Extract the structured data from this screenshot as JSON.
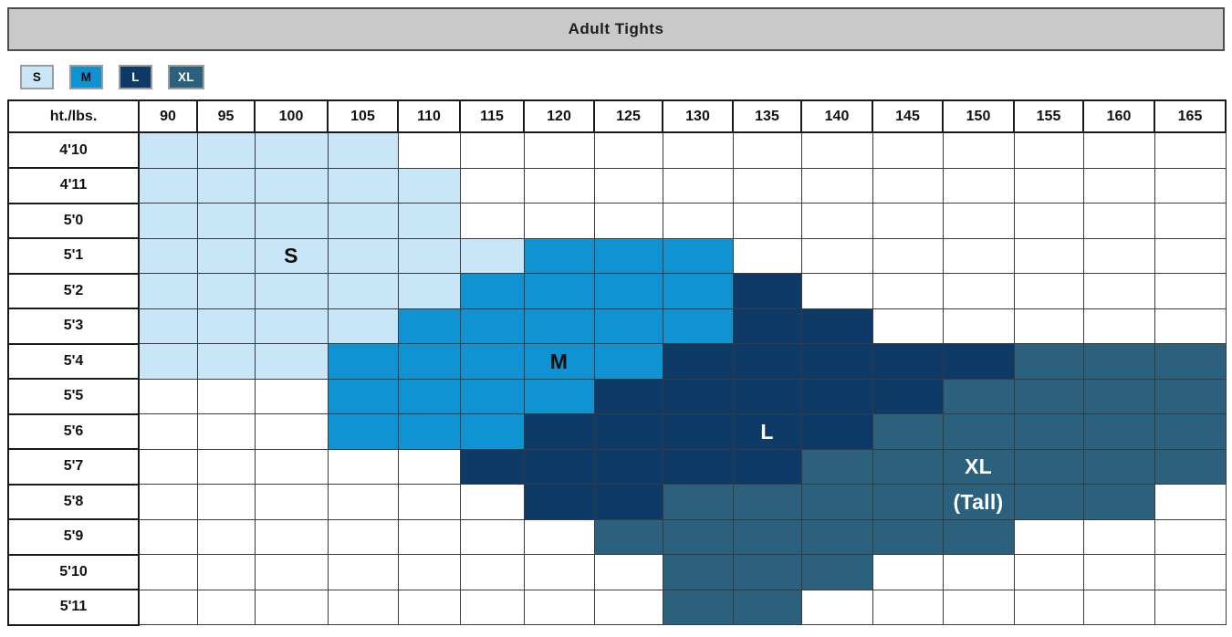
{
  "title_bar": {
    "title": "Adult Tights"
  },
  "legend": {
    "items": [
      {
        "size": "S"
      },
      {
        "size": "M"
      },
      {
        "size": "L"
      },
      {
        "size": "XL"
      }
    ]
  },
  "size_styles": {
    "S": {
      "fill": "#c9e6f8",
      "text": "#0d0d0d"
    },
    "M": {
      "fill": "#0f93d2",
      "text": "#0d0d0d"
    },
    "L": {
      "fill": "#0d3a66",
      "text": "#ffffff"
    },
    "XL": {
      "fill": "#2b617c",
      "text": "#ffffff"
    }
  },
  "chart_data": {
    "type": "heatmap",
    "title": "Adult Tights",
    "corner_label": "ht./lbs.",
    "xlabel": "lbs.",
    "ylabel": "ht.",
    "x_categories": [
      "90",
      "95",
      "100",
      "105",
      "110",
      "115",
      "120",
      "125",
      "130",
      "135",
      "140",
      "145",
      "150",
      "155",
      "160",
      "165"
    ],
    "y_categories": [
      "4'10",
      "4'11",
      "5'0",
      "5'1",
      "5'2",
      "5'3",
      "5'4",
      "5'5",
      "5'6",
      "5'7",
      "5'8",
      "5'9",
      "5'10",
      "5'11"
    ],
    "legend_entries": [
      "S",
      "M",
      "L",
      "XL"
    ],
    "values": [
      [
        "S",
        "S",
        "S",
        "S",
        "",
        "",
        "",
        "",
        "",
        "",
        "",
        "",
        "",
        "",
        "",
        ""
      ],
      [
        "S",
        "S",
        "S",
        "S",
        "S",
        "",
        "",
        "",
        "",
        "",
        "",
        "",
        "",
        "",
        "",
        ""
      ],
      [
        "S",
        "S",
        "S",
        "S",
        "S",
        "",
        "",
        "",
        "",
        "",
        "",
        "",
        "",
        "",
        "",
        ""
      ],
      [
        "S",
        "S",
        "S",
        "S",
        "S",
        "S",
        "M",
        "M",
        "M",
        "",
        "",
        "",
        "",
        "",
        "",
        ""
      ],
      [
        "S",
        "S",
        "S",
        "S",
        "S",
        "M",
        "M",
        "M",
        "M",
        "L",
        "",
        "",
        "",
        "",
        "",
        ""
      ],
      [
        "S",
        "S",
        "S",
        "S",
        "M",
        "M",
        "M",
        "M",
        "M",
        "L",
        "L",
        "",
        "",
        "",
        "",
        ""
      ],
      [
        "S",
        "S",
        "S",
        "M",
        "M",
        "M",
        "M",
        "M",
        "L",
        "L",
        "L",
        "L",
        "L",
        "XL",
        "XL",
        "XL"
      ],
      [
        "",
        "",
        "",
        "M",
        "M",
        "M",
        "M",
        "L",
        "L",
        "L",
        "L",
        "L",
        "XL",
        "XL",
        "XL",
        "XL"
      ],
      [
        "",
        "",
        "",
        "M",
        "M",
        "M",
        "L",
        "L",
        "L",
        "L",
        "L",
        "XL",
        "XL",
        "XL",
        "XL",
        "XL"
      ],
      [
        "",
        "",
        "",
        "",
        "",
        "L",
        "L",
        "L",
        "L",
        "L",
        "XL",
        "XL",
        "XL",
        "XL",
        "XL",
        "XL"
      ],
      [
        "",
        "",
        "",
        "",
        "",
        "",
        "L",
        "L",
        "XL",
        "XL",
        "XL",
        "XL",
        "XL",
        "XL",
        "XL",
        ""
      ],
      [
        "",
        "",
        "",
        "",
        "",
        "",
        "",
        "XL",
        "XL",
        "XL",
        "XL",
        "XL",
        "XL",
        "",
        "",
        ""
      ],
      [
        "",
        "",
        "",
        "",
        "",
        "",
        "",
        "",
        "XL",
        "XL",
        "XL",
        "",
        "",
        "",
        "",
        ""
      ],
      [
        "",
        "",
        "",
        "",
        "",
        "",
        "",
        "",
        "XL",
        "XL",
        "",
        "",
        "",
        "",
        "",
        ""
      ]
    ],
    "region_labels": [
      {
        "text": "S",
        "row": 3,
        "col": 2,
        "color": "#0d0d0d"
      },
      {
        "text": "M",
        "row": 6,
        "col": 6,
        "color": "#0d0d0d"
      },
      {
        "text": "L",
        "row": 8,
        "col": 9,
        "color": "#ffffff"
      },
      {
        "text": "XL",
        "row": 9,
        "col": 12,
        "color": "#ffffff"
      },
      {
        "text": "(Tall)",
        "row": 10,
        "col": 12,
        "color": "#ffffff"
      }
    ]
  }
}
